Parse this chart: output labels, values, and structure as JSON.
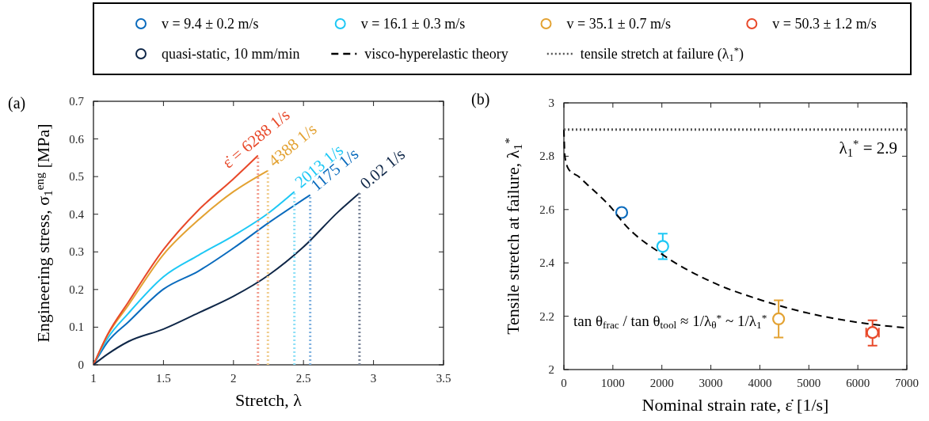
{
  "chart_data": [
    {
      "type": "line",
      "title": "(a)",
      "xlabel": "Stretch, λ",
      "ylabel": "Engineering stress, σ$_{1}$$^{eng}$ [MPa]",
      "xlim": [
        1,
        3.5
      ],
      "ylim": [
        0,
        0.7
      ],
      "xticks": [
        1,
        1.5,
        2,
        2.5,
        3,
        3.5
      ],
      "yticks": [
        0,
        0.1,
        0.2,
        0.3,
        0.4,
        0.5,
        0.6,
        0.7
      ],
      "grid": false,
      "legend": "top",
      "line_style": "solid",
      "marker": "none",
      "series": [
        {
          "name": "v = 9.4 ± 0.2 m/s",
          "color": "#0a6bbd",
          "x": [
            1,
            1.1,
            1.25,
            1.5,
            1.75,
            2,
            2.25,
            2.548
          ],
          "values": [
            0,
            0.06,
            0.114,
            0.201,
            0.249,
            0.31,
            0.377,
            0.451
          ]
        },
        {
          "name": "v = 16.1 ± 0.3 m/s",
          "color": "#1ec8f5",
          "x": [
            1,
            1.1,
            1.25,
            1.5,
            1.75,
            2,
            2.25,
            2.435
          ],
          "values": [
            0,
            0.07,
            0.137,
            0.234,
            0.291,
            0.343,
            0.403,
            0.46
          ]
        },
        {
          "name": "v = 35.1 ± 0.7 m/s",
          "color": "#e3a232",
          "x": [
            1,
            1.1,
            1.25,
            1.5,
            1.75,
            2,
            2.246
          ],
          "values": [
            0,
            0.078,
            0.159,
            0.293,
            0.385,
            0.46,
            0.516
          ]
        },
        {
          "name": "v = 50.3 ± 1.2 m/s",
          "color": "#e8492a",
          "x": [
            1,
            1.1,
            1.25,
            1.5,
            1.75,
            2,
            2.175
          ],
          "values": [
            0,
            0.08,
            0.167,
            0.306,
            0.411,
            0.494,
            0.556
          ]
        },
        {
          "name": "quasi-static, 10 mm/min",
          "color": "#0f2748",
          "x": [
            1,
            1.1,
            1.25,
            1.5,
            1.75,
            2,
            2.25,
            2.5,
            2.75,
            2.9
          ],
          "values": [
            0,
            0.028,
            0.062,
            0.095,
            0.138,
            0.182,
            0.238,
            0.313,
            0.407,
            0.456
          ]
        },
        {
          "color": "#82b3e0",
          "line_style": "dotted",
          "x": [
            2.548,
            2.548
          ],
          "values": [
            0,
            0.451
          ]
        },
        {
          "color": "#8fe0f7",
          "line_style": "dotted",
          "x": [
            2.435,
            2.435
          ],
          "values": [
            0,
            0.46
          ]
        },
        {
          "color": "#f0cd8e",
          "line_style": "dotted",
          "x": [
            2.246,
            2.246
          ],
          "values": [
            0,
            0.516
          ]
        },
        {
          "color": "#f29c8c",
          "line_style": "dotted",
          "x": [
            2.175,
            2.175
          ],
          "values": [
            0,
            0.556
          ]
        },
        {
          "color": "#7a8599",
          "line_style": "dotted",
          "x": [
            2.9,
            2.9
          ],
          "values": [
            0,
            0.456
          ]
        }
      ],
      "annotations": [
        {
          "text": "ε̇ = 6288 1/s",
          "x": 2.175,
          "y": 0.556
        },
        {
          "text": "4388 1/s",
          "x": 2.246,
          "y": 0.516
        },
        {
          "text": "2013 1/s",
          "x": 2.435,
          "y": 0.46
        },
        {
          "text": "1175 1/s",
          "x": 2.548,
          "y": 0.451
        },
        {
          "text": "0.02 1/s",
          "x": 2.9,
          "y": 0.456
        }
      ]
    },
    {
      "type": "scatter",
      "title": "(b)",
      "xlabel": "Nominal strain rate, ε̇ [1/s]",
      "ylabel": "Tensile stretch at failure, λ$_{1}$$^{*}$",
      "xlim": [
        0,
        7000
      ],
      "ylim": [
        2,
        3
      ],
      "xticks": [
        0,
        1000,
        2000,
        3000,
        4000,
        5000,
        6000,
        7000
      ],
      "yticks": [
        2,
        2.2,
        2.4,
        2.6,
        2.8,
        3
      ],
      "grid": false,
      "legend": "top",
      "series": [
        {
          "marker": "circle",
          "color": "#0a6bbd",
          "x": [
            1180
          ],
          "values": [
            2.589
          ]
        },
        {
          "marker": "circle",
          "color": "#1ec8f5",
          "x": [
            2018
          ],
          "values": [
            2.462
          ],
          "errors": [
            [
              2.414,
              2.51
            ]
          ]
        },
        {
          "marker": "circle",
          "color": "#e3a232",
          "x": [
            4383
          ],
          "values": [
            2.19
          ],
          "errors": [
            [
              2.12,
              2.26
            ]
          ]
        },
        {
          "marker": "circle",
          "color": "#e8492a",
          "x": [
            6300
          ],
          "values": [
            2.139
          ],
          "errors": [
            [
              2.09,
              2.185
            ]
          ],
          "xerrors": [
            130
          ]
        },
        {
          "name": "visco-hyperelastic theory",
          "type": "line",
          "marker": "none",
          "line_style": "dashed",
          "color": "#000000",
          "x": [
            0,
            20,
            100,
            300,
            500,
            1000,
            1200,
            2000,
            3000,
            4000,
            5000,
            6000,
            7000
          ],
          "values": [
            2.9,
            2.8,
            2.75,
            2.724,
            2.69,
            2.6,
            2.553,
            2.433,
            2.33,
            2.262,
            2.211,
            2.177,
            2.156
          ]
        },
        {
          "name": "tensile stretch at failure (λ$_{1}$$^{*}$)",
          "type": "line",
          "marker": "none",
          "line_style": "dotted",
          "color": "#555555",
          "x": [
            0,
            7000
          ],
          "values": [
            2.9,
            2.9
          ]
        }
      ],
      "annotations": [
        {
          "text": "λ$_{1}$$^{*}$ = 2.9",
          "x": 7000,
          "y": 2.9
        },
        "tan θ$_{frac}$ / tan θ$_{tool}$ ≈ 1/λ$_{θ}$$^{*}$ ~ 1/λ$_{1}$$^{*}$"
      ]
    }
  ]
}
